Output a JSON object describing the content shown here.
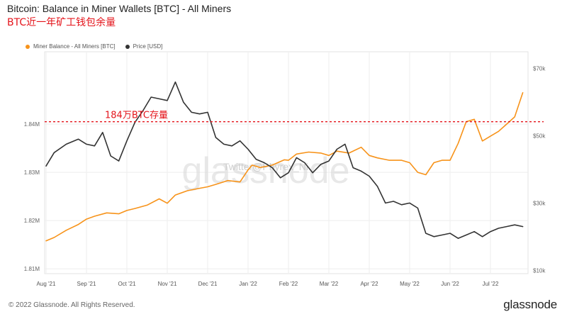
{
  "header": {
    "title": "Bitcoin: Balance in Miner Wallets [BTC] - All Miners",
    "subtitle": "BTC近一年矿工钱包余量"
  },
  "legend": {
    "items": [
      {
        "label": "Miner Balance - All Miners [BTC]",
        "color": "#f7931a"
      },
      {
        "label": "Price [USD]",
        "color": "#333333"
      }
    ]
  },
  "annotation": {
    "label": "184万BTC存量",
    "value": 1840500,
    "color": "#e4141b"
  },
  "watermark": {
    "logo": "glassnode",
    "text": "Twitter@Phyrex_Ni"
  },
  "footer": {
    "copyright": "© 2022 Glassnode. All Rights Reserved.",
    "brand": "glassnode"
  },
  "chart_data": {
    "type": "line",
    "x_ticks": [
      "Aug '21",
      "Sep '21",
      "Oct '21",
      "Nov '21",
      "Dec '21",
      "Jan '22",
      "Feb '22",
      "Mar '22",
      "Apr '22",
      "May '22",
      "Jun '22",
      "Jul '22"
    ],
    "left_axis": {
      "ticks": [
        "1.81M",
        "1.82M",
        "1.83M",
        "1.84M"
      ],
      "values": [
        1810000,
        1820000,
        1830000,
        1840000
      ],
      "range": [
        1809000,
        1855000
      ]
    },
    "right_axis": {
      "ticks": [
        "$10k",
        "$30k",
        "$50k",
        "$70k"
      ],
      "values": [
        10000,
        30000,
        50000,
        70000
      ],
      "range": [
        9000,
        75000
      ]
    },
    "grid": true,
    "series": [
      {
        "name": "Miner Balance - All Miners [BTC]",
        "axis": "left",
        "color": "#f7931a",
        "x": [
          0,
          0.2,
          0.5,
          0.8,
          1.0,
          1.2,
          1.5,
          1.8,
          2.0,
          2.2,
          2.5,
          2.8,
          3.0,
          3.2,
          3.5,
          3.8,
          4.0,
          4.2,
          4.5,
          4.8,
          5.0,
          5.1,
          5.3,
          5.6,
          5.9,
          6.0,
          6.2,
          6.5,
          6.8,
          7.0,
          7.2,
          7.5,
          7.8,
          8.0,
          8.2,
          8.5,
          8.8,
          9.0,
          9.2,
          9.4,
          9.6,
          9.8,
          10.0,
          10.2,
          10.4,
          10.6,
          10.8,
          11.0,
          11.2,
          11.4,
          11.6,
          11.8
        ],
        "y": [
          1815800,
          1816500,
          1818000,
          1819200,
          1820300,
          1820900,
          1821600,
          1821400,
          1822100,
          1822500,
          1823200,
          1824500,
          1823600,
          1825300,
          1826200,
          1826700,
          1827000,
          1827500,
          1828300,
          1828000,
          1830500,
          1831500,
          1831000,
          1831500,
          1832600,
          1832500,
          1833800,
          1834200,
          1834000,
          1833500,
          1834400,
          1834000,
          1835200,
          1833500,
          1833000,
          1832500,
          1832500,
          1832000,
          1830000,
          1829500,
          1832000,
          1832500,
          1832500,
          1836000,
          1840500,
          1841000,
          1836500,
          1837500,
          1838500,
          1840000,
          1841500,
          1846500
        ]
      },
      {
        "name": "Price [USD]",
        "axis": "right",
        "color": "#333333",
        "x": [
          0,
          0.2,
          0.5,
          0.8,
          1.0,
          1.2,
          1.4,
          1.6,
          1.8,
          2.0,
          2.2,
          2.4,
          2.6,
          2.8,
          3.0,
          3.2,
          3.4,
          3.6,
          3.8,
          4.0,
          4.2,
          4.4,
          4.6,
          4.8,
          5.0,
          5.2,
          5.4,
          5.6,
          5.8,
          6.0,
          6.2,
          6.4,
          6.6,
          6.8,
          7.0,
          7.2,
          7.4,
          7.6,
          7.8,
          8.0,
          8.2,
          8.4,
          8.6,
          8.8,
          9.0,
          9.2,
          9.4,
          9.6,
          9.8,
          10.0,
          10.2,
          10.4,
          10.6,
          10.8,
          11.0,
          11.2,
          11.4,
          11.6,
          11.8
        ],
        "y": [
          41000,
          45000,
          47500,
          49000,
          47500,
          47000,
          51000,
          44000,
          42500,
          48500,
          54000,
          57500,
          61500,
          61000,
          60500,
          66000,
          60000,
          57000,
          56500,
          57000,
          49500,
          47500,
          47000,
          48500,
          46000,
          43000,
          42000,
          40500,
          37500,
          39000,
          43500,
          42000,
          39000,
          41500,
          42500,
          46000,
          47500,
          40500,
          39500,
          38000,
          35000,
          30000,
          30500,
          29500,
          30000,
          28500,
          21000,
          20000,
          20500,
          21000,
          19500,
          20500,
          21500,
          20000,
          21500,
          22500,
          23000,
          23500,
          23000
        ]
      }
    ]
  }
}
